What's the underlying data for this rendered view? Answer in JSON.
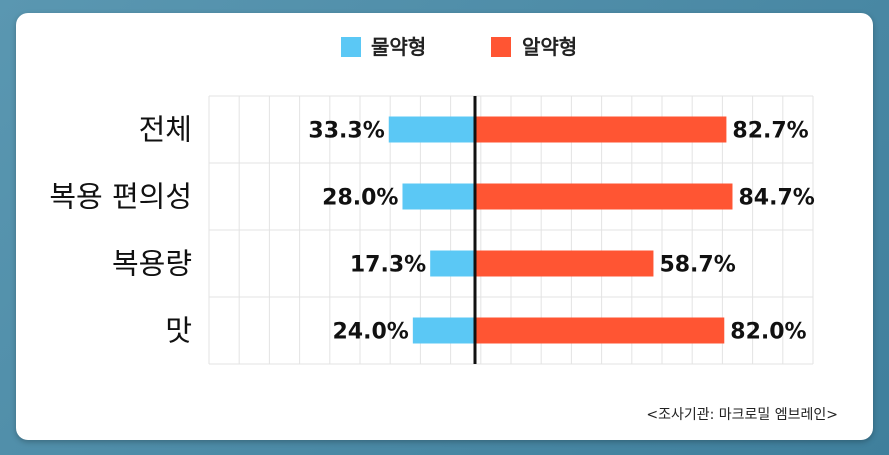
{
  "chart_data": {
    "type": "bar",
    "orientation": "diverging-horizontal",
    "categories": [
      "전체",
      "복용 편의성",
      "복용량",
      "맛"
    ],
    "series": [
      {
        "name": "물약형",
        "values": [
          33.3,
          28.0,
          17.3,
          24.0
        ],
        "color": "#5bc8f5",
        "value_labels": [
          "33.3%",
          "28.0%",
          "17.3%",
          "24.0%"
        ]
      },
      {
        "name": "알약형",
        "values": [
          82.7,
          84.7,
          58.7,
          82.0
        ],
        "color": "#ff5533",
        "value_labels": [
          "82.7%",
          "84.7%",
          "58.7%",
          "82.0%"
        ]
      }
    ],
    "unit": "%",
    "legend_position": "top-center",
    "grid": true,
    "xlim": [
      0,
      100
    ]
  },
  "source": "<조사기관: 마크로밀 엠브레인>"
}
